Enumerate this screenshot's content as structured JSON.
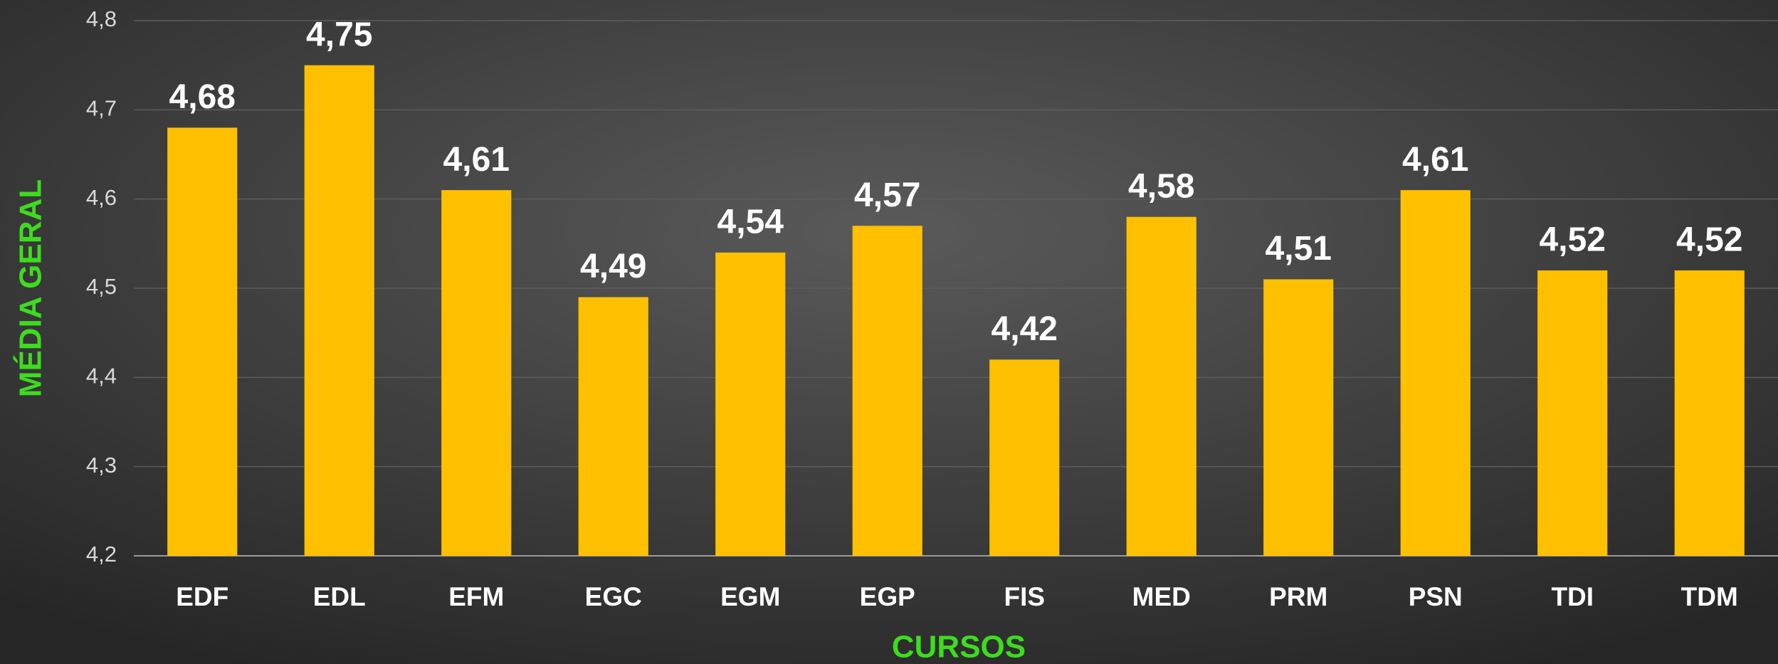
{
  "chart_data": {
    "type": "bar",
    "categories": [
      "EDF",
      "EDL",
      "EFM",
      "EGC",
      "EGM",
      "EGP",
      "FIS",
      "MED",
      "PRM",
      "PSN",
      "TDI",
      "TDM"
    ],
    "values": [
      4.68,
      4.75,
      4.61,
      4.49,
      4.54,
      4.57,
      4.42,
      4.58,
      4.51,
      4.61,
      4.52,
      4.52
    ],
    "value_labels": [
      "4,68",
      "4,75",
      "4,61",
      "4,49",
      "4,54",
      "4,57",
      "4,42",
      "4,58",
      "4,51",
      "4,61",
      "4,52",
      "4,52"
    ],
    "color": "#ffc000",
    "ylim": [
      4.2,
      4.8
    ],
    "yticks": [
      {
        "value": 4.2,
        "label": "4,2"
      },
      {
        "value": 4.3,
        "label": "4,3"
      },
      {
        "value": 4.4,
        "label": "4,4"
      },
      {
        "value": 4.5,
        "label": "4,5"
      },
      {
        "value": 4.6,
        "label": "4,6"
      },
      {
        "value": 4.7,
        "label": "4,7"
      },
      {
        "value": 4.8,
        "label": "4,8"
      }
    ],
    "ylabel": "MÉDIA GERAL",
    "xlabel": "CURSOS",
    "grid": true
  }
}
